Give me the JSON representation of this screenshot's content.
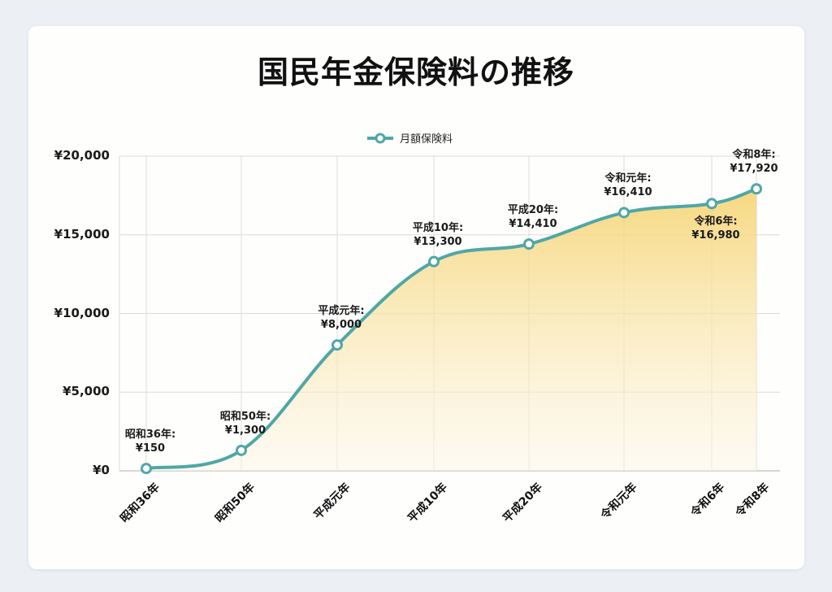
{
  "page": {
    "title": "国民年金保険料の推移",
    "legend": "月額保険料"
  },
  "colors": {
    "line": "#4fa7a7",
    "fill_top": "#f5d26b",
    "fill_bottom": "#fdf7e8",
    "grid": "#dcdcdc"
  },
  "axis": {
    "y_ticks": [
      "¥0",
      "¥5,000",
      "¥10,000",
      "¥15,000",
      "¥20,000"
    ],
    "x_ticks": [
      "昭和36年",
      "昭和50年",
      "平成元年",
      "平成10年",
      "平成20年",
      "令和元年",
      "令和6年",
      "令和8年"
    ]
  },
  "labels": [
    {
      "era": "昭和36年:",
      "value": "¥150"
    },
    {
      "era": "昭和50年:",
      "value": "¥1,300"
    },
    {
      "era": "平成元年:",
      "value": "¥8,000"
    },
    {
      "era": "平成10年:",
      "value": "¥13,300"
    },
    {
      "era": "平成20年:",
      "value": "¥14,410"
    },
    {
      "era": "令和元年:",
      "value": "¥16,410"
    },
    {
      "era": "令和6年:",
      "value": "¥16,980"
    },
    {
      "era": "令和8年:",
      "value": "¥17,920"
    }
  ],
  "chart_data": {
    "type": "area",
    "title": "国民年金保険料の推移",
    "xlabel": "",
    "ylabel": "",
    "categories": [
      "昭和36年",
      "昭和50年",
      "平成元年",
      "平成10年",
      "平成20年",
      "令和元年",
      "令和6年",
      "令和8年"
    ],
    "series": [
      {
        "name": "月額保険料",
        "values": [
          150,
          1300,
          8000,
          13300,
          14410,
          16410,
          16980,
          17920
        ]
      }
    ],
    "ylim": [
      0,
      20000
    ],
    "y_ticks": [
      0,
      5000,
      10000,
      15000,
      20000
    ],
    "grid": true,
    "legend_position": "top",
    "data_labels": [
      "昭和36年: ¥150",
      "昭和50年: ¥1,300",
      "平成元年: ¥8,000",
      "平成10年: ¥13,300",
      "平成20年: ¥14,410",
      "令和元年: ¥16,410",
      "令和6年: ¥16,980",
      "令和8年: ¥17,920"
    ]
  }
}
